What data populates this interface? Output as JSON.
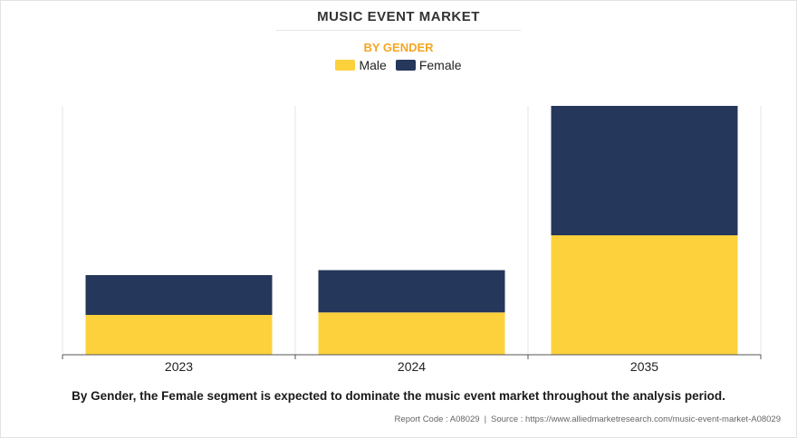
{
  "title": "MUSIC EVENT MARKET",
  "subtitle": "BY GENDER",
  "caption": "By Gender, the Female segment is expected to dominate the music event market throughout the analysis period.",
  "source": {
    "report_code": "Report Code : A08029",
    "separator": "|",
    "url": "Source : https://www.alliedmarketresearch.com/music-event-market-A08029"
  },
  "colors": {
    "accent": "#F5A623",
    "male": "#FDD13C",
    "female": "#25375A",
    "grid": "#e4e4e4",
    "axis": "#555555"
  },
  "chart_data": {
    "type": "bar",
    "stacked": true,
    "categories": [
      "2023",
      "2024",
      "2035"
    ],
    "series": [
      {
        "name": "Male",
        "values": [
          0.16,
          0.17,
          0.48
        ]
      },
      {
        "name": "Female",
        "values": [
          0.16,
          0.17,
          0.52
        ]
      }
    ],
    "ylim": [
      0,
      1.0
    ],
    "xlabel": "",
    "ylabel": "",
    "legend_position": "top-center",
    "grid": "vertical"
  }
}
